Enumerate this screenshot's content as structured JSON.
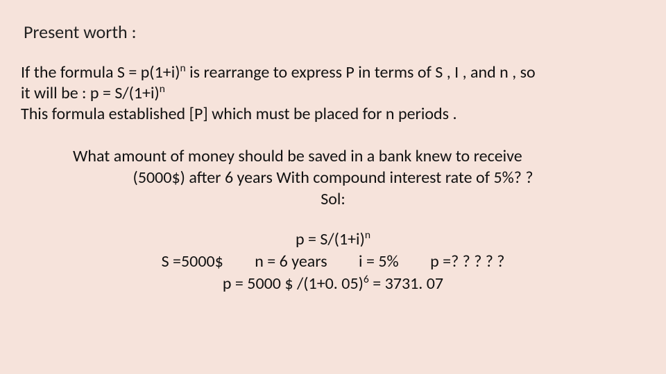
{
  "background_color": "#f6e3db",
  "text_color": "#222222",
  "font_family": "Calibri",
  "title": "Present worth :",
  "paragraph": {
    "line1_pre": "If the formula S = p(1+i)",
    "line1_sup": "n",
    "line1_post": "   is rearrange to express P in terms of S , I , and n , so",
    "line2_pre": " it will be :    p = S/(1+i)",
    "line2_sup": "n",
    "line3": "This formula established [P] which must be placed for n periods ."
  },
  "question": {
    "line1": "What amount of money should be saved in a bank knew to receive",
    "line2": "(5000$) after 6 years With compound interest rate of 5%? ?",
    "sol_label": "Sol:"
  },
  "solution": {
    "formula_pre": "p = S/(1+i)",
    "formula_sup": "n",
    "given_S": "S =5000$",
    "given_n": "n = 6 years",
    "given_i": "i = 5%",
    "given_p": "p =? ? ? ? ?",
    "calc_pre": "p = 5000 $ /(1+0. 05)",
    "calc_sup": "6",
    "calc_post": "   = 3731. 07"
  },
  "fontsize_title": 26,
  "fontsize_body": 24
}
